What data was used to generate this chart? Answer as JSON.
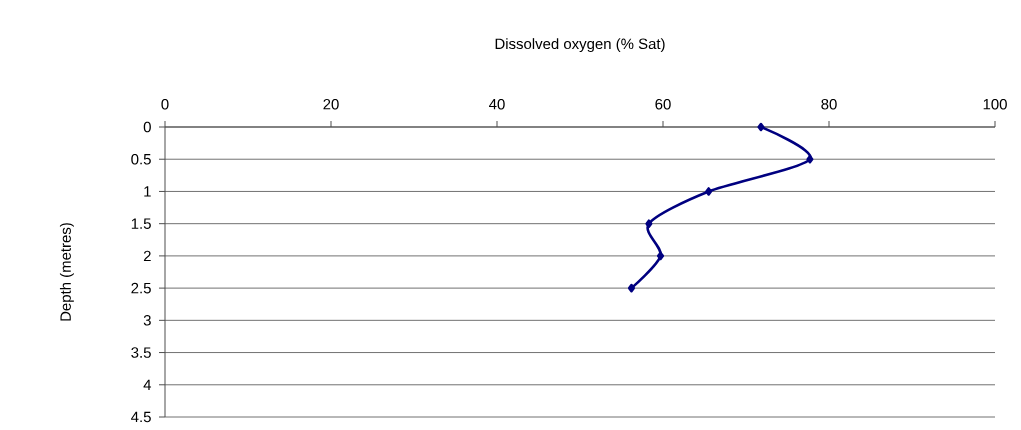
{
  "chart_data": {
    "type": "line",
    "xlabel": "Dissolved oxygen (% Sat)",
    "ylabel": "Depth (metres)",
    "x": [
      71.8,
      77.7,
      65.5,
      58.3,
      59.7,
      56.2
    ],
    "series": [
      {
        "color": "#000080",
        "values": [
          0,
          0.5,
          1,
          1.5,
          2,
          2.5
        ]
      }
    ],
    "xlim": [
      0,
      100
    ],
    "xticks": [
      0,
      20,
      40,
      60,
      80,
      100
    ],
    "ylim": [
      4.5,
      0
    ],
    "yticks": [
      0,
      0.5,
      1,
      1.5,
      2,
      2.5,
      3,
      3.5,
      4,
      4.5
    ],
    "grid": "y",
    "marker": "diamond"
  }
}
